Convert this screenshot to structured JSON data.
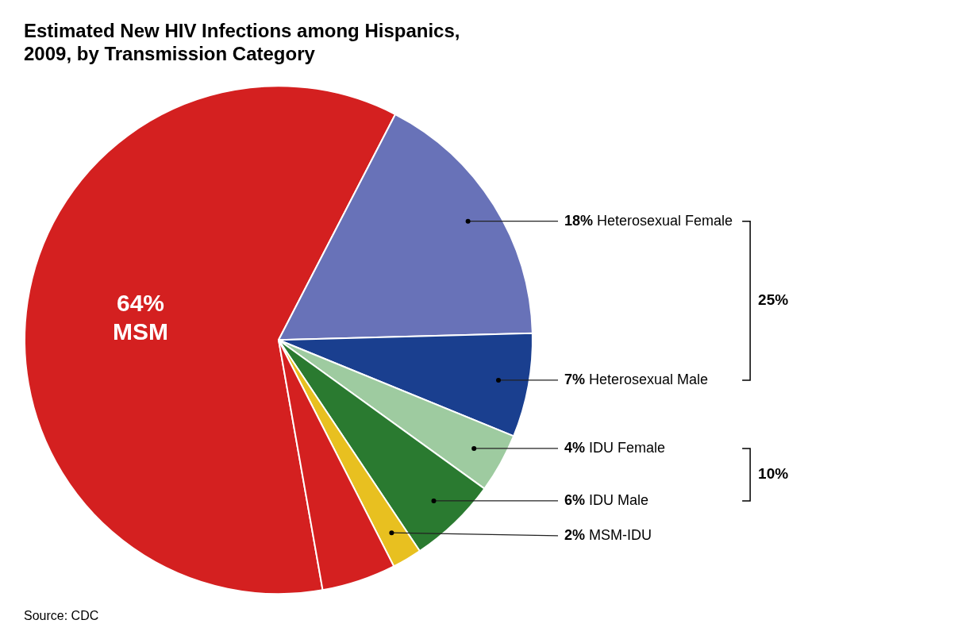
{
  "chart_data": {
    "type": "pie",
    "title": [
      "Estimated New HIV Infections among Hispanics,",
      "2009, by Transmission Category"
    ],
    "categories": [
      "MSM",
      "Heterosexual Female",
      "Heterosexual Male",
      "IDU Female",
      "IDU Male",
      "MSM-IDU",
      null
    ],
    "values": [
      64,
      18,
      7,
      4,
      6,
      2,
      5
    ],
    "value_labels": [
      "64%",
      "18%",
      "7%",
      "4%",
      "6%",
      "2%",
      null
    ],
    "colors": [
      "#D42020",
      "#6872B8",
      "#1A3F8F",
      "#9ECBA0",
      "#2A7A30",
      "#E8C020",
      "#D42020"
    ],
    "data_labels": true,
    "annotations": [
      {
        "text": "25%",
        "categories": [
          "Heterosexual Female",
          "Heterosexual Male"
        ]
      },
      {
        "text": "10%",
        "categories": [
          "IDU Female",
          "IDU Male"
        ]
      }
    ],
    "source": "Source: CDC"
  }
}
